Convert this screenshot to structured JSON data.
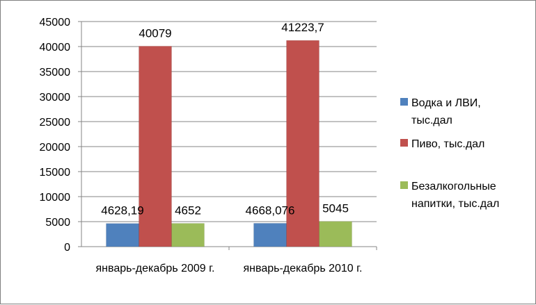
{
  "chart_data": {
    "type": "bar",
    "title": "",
    "xlabel": "",
    "ylabel": "",
    "categories": [
      "январь-декабрь  2009 г.",
      "январь-декабрь  2010 г."
    ],
    "series": [
      {
        "name": "Водка и ЛВИ, тыс.дал",
        "values": [
          4628.19,
          4668.076
        ],
        "labels": [
          "4628,19",
          "4668,076"
        ],
        "color": "#4f81bd"
      },
      {
        "name": "Пиво, тыс.дал",
        "values": [
          40079,
          41223.7
        ],
        "labels": [
          "40079",
          "41223,7"
        ],
        "color": "#c0504d"
      },
      {
        "name": "Безалкогольные напитки, тыс.дал",
        "values": [
          4652,
          5045
        ],
        "labels": [
          "4652",
          "5045"
        ],
        "color": "#9bbb59"
      }
    ],
    "ylim": [
      0,
      45000
    ],
    "yticks": [
      0,
      5000,
      10000,
      15000,
      20000,
      25000,
      30000,
      35000,
      40000,
      45000
    ],
    "grid": true,
    "legend": "right",
    "legend_lines": [
      [
        "Водка и ЛВИ,",
        "тыс.дал"
      ],
      [
        "Пиво, тыс.дал"
      ],
      [
        "Безалкогольные",
        "напитки, тыс.дал"
      ]
    ]
  }
}
